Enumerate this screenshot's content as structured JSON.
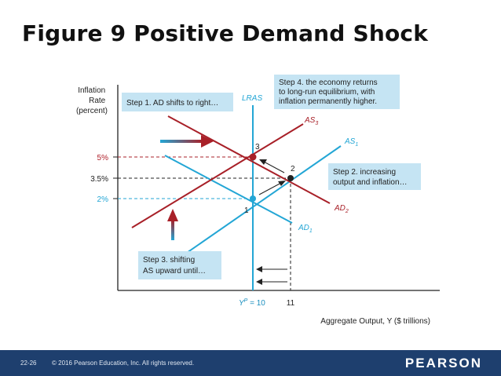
{
  "slide": {
    "title": "Figure 9 Positive Demand Shock"
  },
  "diagram": {
    "y_axis_label": [
      "Inflation",
      "Rate",
      "(percent)"
    ],
    "x_axis_label": "Aggregate Output, Y ($ trillions)",
    "y_ticks": [
      {
        "label": "5%",
        "color": "#b0202a"
      },
      {
        "label": "3.5%",
        "color": "#222222"
      },
      {
        "label": "2%",
        "color": "#23a6d5"
      }
    ],
    "x_ticks": {
      "potential": {
        "main": "Y",
        "sup": "P",
        "rest": " = 10"
      },
      "eleven": "11"
    },
    "curves": {
      "lras": "LRAS",
      "as1": {
        "main": "AS",
        "sub": "1"
      },
      "as3": {
        "main": "AS",
        "sub": "3"
      },
      "ad1": {
        "main": "AD",
        "sub": "1"
      },
      "ad2": {
        "main": "AD",
        "sub": "2"
      }
    },
    "points": {
      "p1": "1",
      "p2": "2",
      "p3": "3"
    },
    "callouts": {
      "step1": [
        "Step 1. AD shifts to right…"
      ],
      "step2": [
        "Step 2. increasing",
        "output and inflation…"
      ],
      "step3": [
        "Step 3. shifting",
        "AS upward until…"
      ],
      "step4": [
        "Step 4. the economy returns",
        "to long-run equilibrium, with",
        "inflation permanently higher."
      ]
    },
    "colors": {
      "red": "#a82028",
      "blue": "#23a6d5",
      "callout_bg": "#c5e4f3",
      "axis": "#222222"
    }
  },
  "footer": {
    "slide_number": "22-26",
    "copyright": "© 2016 Pearson Education, Inc. All rights reserved.",
    "brand": "PEARSON"
  }
}
